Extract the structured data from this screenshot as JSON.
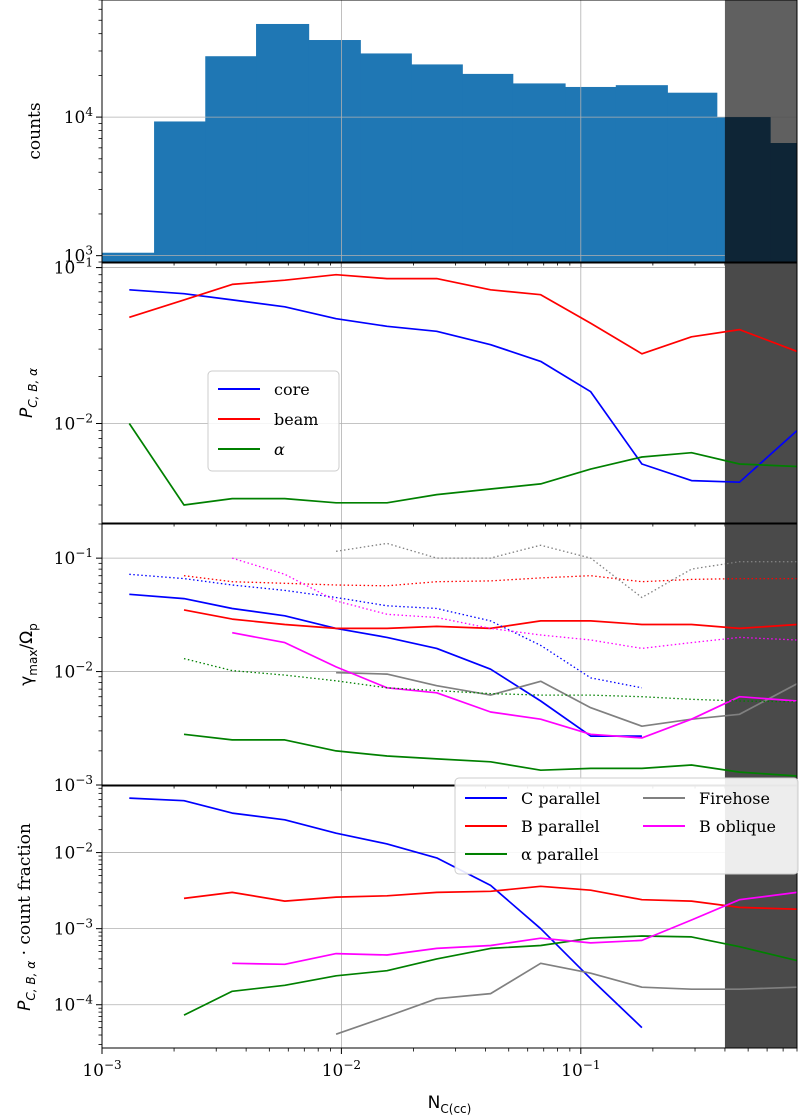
{
  "chart_data": [
    {
      "type": "bar",
      "panel": "counts",
      "ylabel": "counts",
      "scale": "log",
      "ylim": [
        900,
        70000
      ],
      "yticks": [
        {
          "v": 1000,
          "base": "10",
          "exp": "3"
        },
        {
          "v": 10000,
          "base": "10",
          "exp": "4"
        }
      ],
      "bins": [
        {
          "x0": 0.001,
          "x1": 0.00165,
          "value": 1050
        },
        {
          "x0": 0.00165,
          "x1": 0.0027,
          "value": 9300
        },
        {
          "x0": 0.0027,
          "x1": 0.0044,
          "value": 27500
        },
        {
          "x0": 0.0044,
          "x1": 0.0073,
          "value": 47000
        },
        {
          "x0": 0.0073,
          "x1": 0.012,
          "value": 36000
        },
        {
          "x0": 0.012,
          "x1": 0.0196,
          "value": 28800
        },
        {
          "x0": 0.0196,
          "x1": 0.032,
          "value": 24000
        },
        {
          "x0": 0.032,
          "x1": 0.052,
          "value": 20500
        },
        {
          "x0": 0.052,
          "x1": 0.086,
          "value": 17500
        },
        {
          "x0": 0.086,
          "x1": 0.14,
          "value": 16500
        },
        {
          "x0": 0.14,
          "x1": 0.23,
          "value": 17000
        },
        {
          "x0": 0.23,
          "x1": 0.37,
          "value": 15000
        },
        {
          "x0": 0.37,
          "x1": 0.62,
          "value": 10000
        },
        {
          "x0": 0.62,
          "x1": 1.0,
          "value": 6500
        }
      ],
      "bar_color": "#1f77b4"
    },
    {
      "type": "line",
      "panel": "probability",
      "ylabel": "P_{C,B,α}",
      "scale": "log",
      "ylim": [
        0.0023,
        0.107
      ],
      "yticks": [
        {
          "v": 0.01,
          "base": "10",
          "exp": "−2"
        },
        {
          "v": 0.1,
          "base": "10",
          "exp": "−1"
        }
      ],
      "legend": {
        "position": "center-left"
      },
      "series": [
        {
          "name": "core",
          "color": "#0000ff",
          "x": [
            0.0013,
            0.0022,
            0.0035,
            0.0058,
            0.0095,
            0.0155,
            0.025,
            0.042,
            0.068,
            0.11,
            0.18,
            0.29,
            0.46,
            0.8
          ],
          "y": [
            0.072,
            0.068,
            0.062,
            0.056,
            0.047,
            0.042,
            0.039,
            0.032,
            0.025,
            0.016,
            0.0055,
            0.0043,
            0.0042,
            0.009
          ]
        },
        {
          "name": "beam",
          "color": "#ff0000",
          "x": [
            0.0013,
            0.0022,
            0.0035,
            0.0058,
            0.0095,
            0.0155,
            0.025,
            0.042,
            0.068,
            0.11,
            0.18,
            0.29,
            0.46,
            0.8
          ],
          "y": [
            0.048,
            0.062,
            0.078,
            0.083,
            0.09,
            0.085,
            0.085,
            0.072,
            0.067,
            0.044,
            0.028,
            0.036,
            0.04,
            0.029
          ]
        },
        {
          "name": "α",
          "color": "#008000",
          "x": [
            0.0013,
            0.0022,
            0.0035,
            0.0058,
            0.0095,
            0.0155,
            0.025,
            0.042,
            0.068,
            0.11,
            0.18,
            0.29,
            0.46,
            0.8
          ],
          "y": [
            0.01,
            0.003,
            0.0033,
            0.0033,
            0.0031,
            0.0031,
            0.0035,
            0.0038,
            0.0041,
            0.0051,
            0.0061,
            0.0065,
            0.0055,
            0.0053
          ]
        }
      ]
    },
    {
      "type": "line",
      "panel": "growth-rate",
      "ylabel": "γ_max/Ω_p",
      "scale": "log",
      "ylim": [
        0.001,
        0.2
      ],
      "yticks": [
        {
          "v": 0.001,
          "base": "10",
          "exp": "−3"
        },
        {
          "v": 0.01,
          "base": "10",
          "exp": "−2"
        },
        {
          "v": 0.1,
          "base": "10",
          "exp": "−1"
        }
      ],
      "series": [
        {
          "name": "C parallel",
          "color": "#0000ff",
          "style": "solid",
          "x": [
            0.0013,
            0.0022,
            0.0035,
            0.0058,
            0.0095,
            0.0155,
            0.025,
            0.042,
            0.068,
            0.11,
            0.18
          ],
          "y": [
            0.048,
            0.044,
            0.036,
            0.031,
            0.024,
            0.02,
            0.016,
            0.0105,
            0.0055,
            0.0027,
            0.0027
          ]
        },
        {
          "name": "B parallel",
          "color": "#ff0000",
          "style": "solid",
          "x": [
            0.0022,
            0.0035,
            0.0058,
            0.0095,
            0.0155,
            0.025,
            0.042,
            0.068,
            0.11,
            0.18,
            0.29,
            0.46,
            0.8
          ],
          "y": [
            0.035,
            0.029,
            0.026,
            0.024,
            0.024,
            0.025,
            0.024,
            0.028,
            0.028,
            0.026,
            0.026,
            0.024,
            0.026
          ]
        },
        {
          "name": "α parallel",
          "color": "#008000",
          "style": "solid",
          "x": [
            0.0022,
            0.0035,
            0.0058,
            0.0095,
            0.0155,
            0.025,
            0.042,
            0.068,
            0.11,
            0.18,
            0.29,
            0.46,
            0.8
          ],
          "y": [
            0.0028,
            0.0025,
            0.0025,
            0.002,
            0.0018,
            0.0017,
            0.0016,
            0.00135,
            0.0014,
            0.0014,
            0.0015,
            0.0013,
            0.0012
          ]
        },
        {
          "name": "Firehose",
          "color": "#808080",
          "style": "solid",
          "x": [
            0.0095,
            0.0155,
            0.025,
            0.042,
            0.068,
            0.11,
            0.18,
            0.29,
            0.46,
            0.8
          ],
          "y": [
            0.0098,
            0.0095,
            0.0075,
            0.0062,
            0.0082,
            0.0048,
            0.0033,
            0.0038,
            0.0042,
            0.0078
          ]
        },
        {
          "name": "B oblique",
          "color": "#ff00ff",
          "style": "solid",
          "x": [
            0.0035,
            0.0058,
            0.0095,
            0.0155,
            0.025,
            0.042,
            0.068,
            0.11,
            0.18,
            0.29,
            0.46,
            0.8
          ],
          "y": [
            0.022,
            0.018,
            0.011,
            0.0072,
            0.0065,
            0.0044,
            0.0038,
            0.0028,
            0.0026,
            0.0038,
            0.006,
            0.0055
          ]
        },
        {
          "color": "#0000ff",
          "style": "dotted",
          "x": [
            0.0013,
            0.0022,
            0.0035,
            0.0058,
            0.0095,
            0.0155,
            0.025,
            0.042,
            0.068,
            0.11,
            0.18
          ],
          "y": [
            0.072,
            0.066,
            0.058,
            0.052,
            0.045,
            0.038,
            0.036,
            0.028,
            0.017,
            0.0088,
            0.0072
          ]
        },
        {
          "color": "#ff0000",
          "style": "dotted",
          "x": [
            0.0022,
            0.0035,
            0.0058,
            0.0095,
            0.0155,
            0.025,
            0.042,
            0.068,
            0.11,
            0.18,
            0.29,
            0.46,
            0.8
          ],
          "y": [
            0.07,
            0.062,
            0.06,
            0.058,
            0.057,
            0.062,
            0.063,
            0.067,
            0.07,
            0.062,
            0.065,
            0.066,
            0.066
          ]
        },
        {
          "color": "#008000",
          "style": "dotted",
          "x": [
            0.0022,
            0.0035,
            0.0058,
            0.0095,
            0.0155,
            0.025,
            0.042,
            0.068,
            0.11,
            0.18,
            0.29,
            0.46,
            0.8
          ],
          "y": [
            0.013,
            0.0102,
            0.0093,
            0.0083,
            0.0072,
            0.0068,
            0.0064,
            0.0062,
            0.0062,
            0.006,
            0.0057,
            0.0055,
            0.0054
          ]
        },
        {
          "color": "#808080",
          "style": "dotted",
          "x": [
            0.0095,
            0.0155,
            0.025,
            0.042,
            0.068,
            0.11,
            0.18,
            0.29,
            0.46,
            0.8
          ],
          "y": [
            0.115,
            0.135,
            0.1,
            0.1,
            0.13,
            0.1,
            0.045,
            0.08,
            0.093,
            0.093
          ]
        },
        {
          "color": "#ff00ff",
          "style": "dotted",
          "x": [
            0.0035,
            0.0058,
            0.0095,
            0.0155,
            0.025,
            0.042,
            0.068,
            0.11,
            0.18,
            0.29,
            0.46,
            0.8
          ],
          "y": [
            0.1,
            0.072,
            0.042,
            0.032,
            0.03,
            0.024,
            0.021,
            0.019,
            0.016,
            0.018,
            0.02,
            0.019
          ]
        }
      ]
    },
    {
      "type": "line",
      "panel": "weighted",
      "ylabel": "P_{C,B,α} · count fraction",
      "scale": "log",
      "ylim": [
        2.7e-05,
        0.075
      ],
      "yticks": [
        {
          "v": 0.0001,
          "base": "10",
          "exp": "−4"
        },
        {
          "v": 0.001,
          "base": "10",
          "exp": "−3"
        },
        {
          "v": 0.01,
          "base": "10",
          "exp": "−2"
        }
      ],
      "xlabel": "N_C(cc)",
      "xticks": [
        {
          "v": 0.001,
          "base": "10",
          "exp": "−3"
        },
        {
          "v": 0.01,
          "base": "10",
          "exp": "−2"
        },
        {
          "v": 0.1,
          "base": "10",
          "exp": "−1"
        }
      ],
      "legend": {
        "position": "top-right",
        "entries": [
          "C parallel",
          "B parallel",
          "α parallel",
          "Firehose",
          "B oblique"
        ]
      },
      "series": [
        {
          "name": "C parallel",
          "color": "#0000ff",
          "x": [
            0.0013,
            0.0022,
            0.0035,
            0.0058,
            0.0095,
            0.0155,
            0.025,
            0.042,
            0.068,
            0.11,
            0.18
          ],
          "y": [
            0.052,
            0.048,
            0.033,
            0.027,
            0.018,
            0.013,
            0.0085,
            0.0037,
            0.001,
            0.00022,
            5e-05
          ]
        },
        {
          "name": "B parallel",
          "color": "#ff0000",
          "x": [
            0.0022,
            0.0035,
            0.0058,
            0.0095,
            0.0155,
            0.025,
            0.042,
            0.068,
            0.11,
            0.18,
            0.29,
            0.46,
            0.8
          ],
          "y": [
            0.0025,
            0.003,
            0.0023,
            0.0026,
            0.0027,
            0.003,
            0.0031,
            0.0036,
            0.0032,
            0.0024,
            0.0023,
            0.0019,
            0.0018
          ]
        },
        {
          "name": "α parallel",
          "color": "#008000",
          "x": [
            0.0022,
            0.0035,
            0.0058,
            0.0095,
            0.0155,
            0.025,
            0.042,
            0.068,
            0.11,
            0.18,
            0.29,
            0.46,
            0.8
          ],
          "y": [
            7.3e-05,
            0.00015,
            0.00018,
            0.00024,
            0.00028,
            0.0004,
            0.00055,
            0.0006,
            0.00075,
            0.0008,
            0.00078,
            0.00058,
            0.00038
          ]
        },
        {
          "name": "Firehose",
          "color": "#808080",
          "x": [
            0.0095,
            0.0155,
            0.025,
            0.042,
            0.068,
            0.11,
            0.18,
            0.29,
            0.46,
            0.8
          ],
          "y": [
            4.1e-05,
            7e-05,
            0.00012,
            0.00014,
            0.00035,
            0.00026,
            0.00017,
            0.00016,
            0.00016,
            0.00017
          ]
        },
        {
          "name": "B oblique",
          "color": "#ff00ff",
          "x": [
            0.0035,
            0.0058,
            0.0095,
            0.0155,
            0.025,
            0.042,
            0.068,
            0.11,
            0.18,
            0.29,
            0.46,
            0.8
          ],
          "y": [
            0.00035,
            0.00034,
            0.00047,
            0.00045,
            0.00055,
            0.0006,
            0.00075,
            0.00065,
            0.0007,
            0.0013,
            0.0024,
            0.003
          ]
        }
      ]
    }
  ],
  "shared_x": {
    "scale": "log",
    "xlim": [
      0.001,
      0.8
    ],
    "shade_from": 0.4,
    "shade_color": "#4a4a4a"
  }
}
